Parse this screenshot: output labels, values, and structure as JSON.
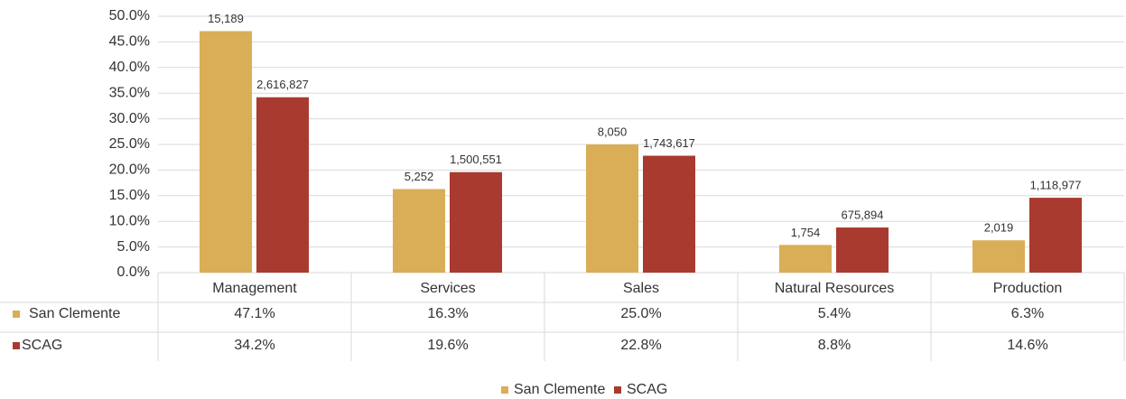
{
  "chart_data": {
    "type": "bar",
    "categories": [
      "Management",
      "Services",
      "Sales",
      "Natural Resources",
      "Production"
    ],
    "series": [
      {
        "name": "San Clemente",
        "color": "#d9ae56",
        "values": [
          47.1,
          16.3,
          25.0,
          5.4,
          6.3
        ],
        "value_labels": [
          "47.1%",
          "16.3%",
          "25.0%",
          "5.4%",
          "6.3%"
        ],
        "counts": [
          15189,
          5252,
          8050,
          1754,
          2019
        ],
        "count_labels": [
          "15,189",
          "5,252",
          "8,050",
          "1,754",
          "2,019"
        ]
      },
      {
        "name": "SCAG",
        "color": "#a93a2f",
        "values": [
          34.2,
          19.6,
          22.8,
          8.8,
          14.6
        ],
        "value_labels": [
          "34.2%",
          "19.6%",
          "22.8%",
          "8.8%",
          "14.6%"
        ],
        "counts": [
          2616827,
          1500551,
          1743617,
          675894,
          1118977
        ],
        "count_labels": [
          "2,616,827",
          "1,500,551",
          "1,743,617",
          "675,894",
          "1,118,977"
        ]
      }
    ],
    "ylim": [
      0,
      50
    ],
    "yticks": [
      {
        "value": 0,
        "label": "0.0%"
      },
      {
        "value": 5,
        "label": "5.0%"
      },
      {
        "value": 10,
        "label": "10.0%"
      },
      {
        "value": 15,
        "label": "15.0%"
      },
      {
        "value": 20,
        "label": "20.0%"
      },
      {
        "value": 25,
        "label": "25.0%"
      },
      {
        "value": 30,
        "label": "30.0%"
      },
      {
        "value": 35,
        "label": "35.0%"
      },
      {
        "value": 40,
        "label": "40.0%"
      },
      {
        "value": 45,
        "label": "45.0%"
      },
      {
        "value": 50,
        "label": "50.0%"
      }
    ],
    "grid": true,
    "legend": "bottom"
  }
}
